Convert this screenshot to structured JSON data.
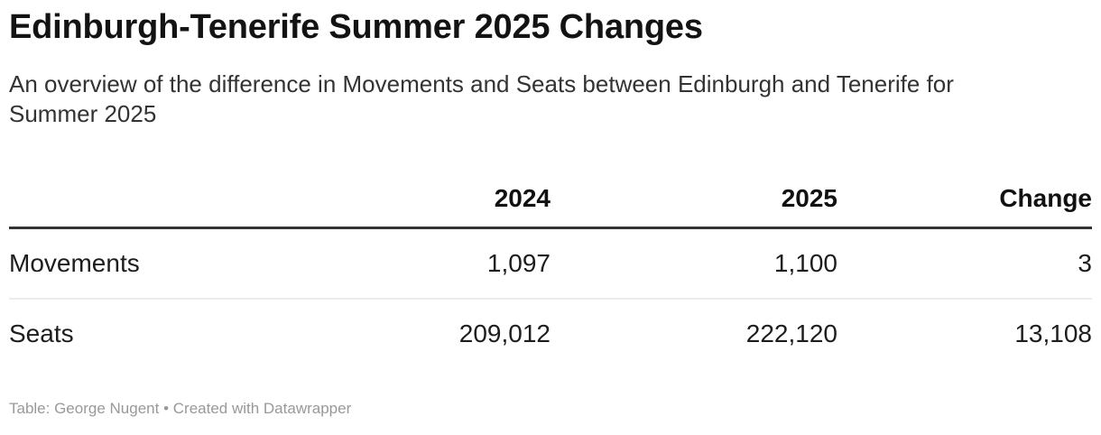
{
  "header": {
    "title": "Edinburgh-Tenerife Summer 2025 Changes",
    "description": "An overview of the difference in Movements and Seats between Edinburgh and Tenerife for Summer 2025"
  },
  "chart_data": {
    "type": "table",
    "title": "Edinburgh-Tenerife Summer 2025 Changes",
    "columns": [
      "",
      "2024",
      "2025",
      "Change"
    ],
    "rows": [
      {
        "label": "Movements",
        "values": [
          "1,097",
          "1,100",
          "3"
        ],
        "numeric": [
          1097,
          1100,
          3
        ]
      },
      {
        "label": "Seats",
        "values": [
          "209,012",
          "222,120",
          "13,108"
        ],
        "numeric": [
          209012,
          222120,
          13108
        ]
      }
    ]
  },
  "footer": {
    "credit": "Table: George Nugent",
    "separator": " • ",
    "tool_credit": "Created with Datawrapper"
  },
  "colors": {
    "title_text": "#131313",
    "description_text": "#333333",
    "table_text": "#1d1d1d",
    "header_rule": "#333333",
    "row_rule": "#ececec",
    "footer_text": "#999999",
    "background": "#ffffff"
  }
}
